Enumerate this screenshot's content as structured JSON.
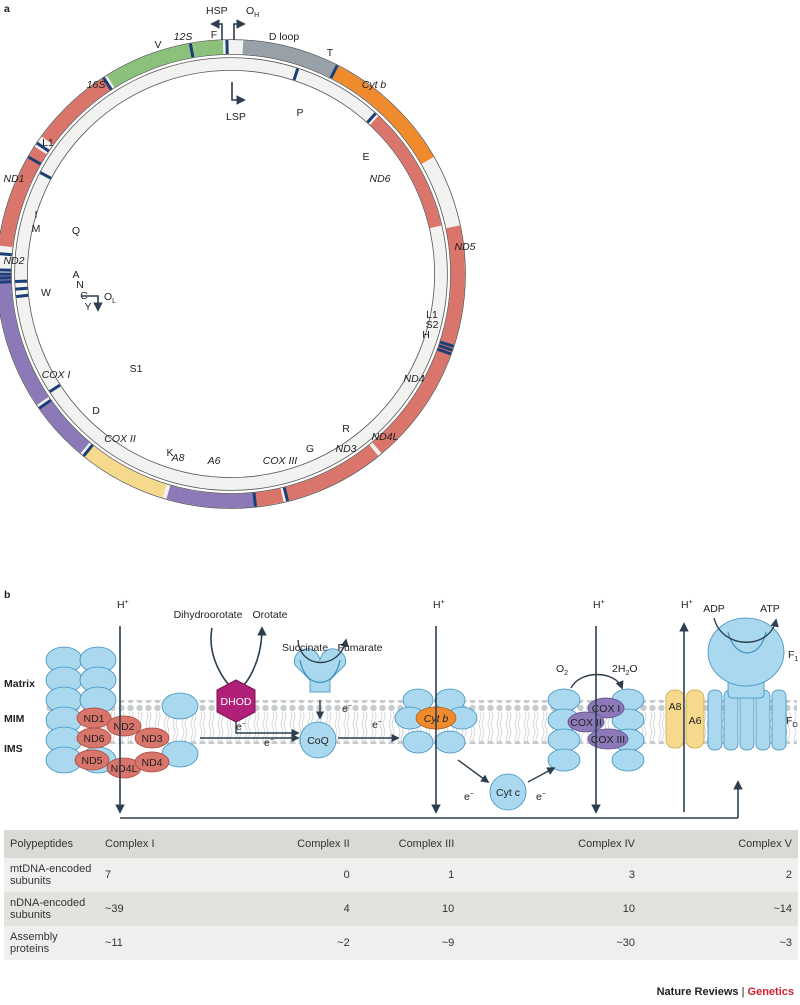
{
  "panel_a": {
    "letter": "a",
    "markers": {
      "HSP": "HSP",
      "OH_main": "O",
      "OH_sub": "H",
      "LSP": "LSP",
      "OL_main": "O",
      "OL_sub": "L"
    },
    "gene_labels": [
      "12S",
      "16S",
      "ND1",
      "ND2",
      "COX I",
      "COX II",
      "A8",
      "A6",
      "COX III",
      "ND3",
      "ND4L",
      "ND4",
      "ND5",
      "ND6",
      "Cyt b",
      "D loop"
    ],
    "trna_labels": [
      "F",
      "V",
      "L1",
      "I",
      "M",
      "Q",
      "W",
      "A",
      "N",
      "C",
      "Y",
      "S1",
      "D",
      "K",
      "G",
      "R",
      "H",
      "S2",
      "L1",
      "E",
      "P",
      "T"
    ],
    "colors": {
      "rrna": "#8cc17c",
      "complex1": "#d9756a",
      "complex4": "#8c79b8",
      "complex5": "#f7d98d",
      "complex3": "#ef8b2c",
      "dloop": "#98a1a8",
      "trna": "#1c3e78",
      "noncoding": "#f2f2f0"
    }
  },
  "panel_b": {
    "letter": "b",
    "membrane": {
      "matrix": "Matrix",
      "mim": "MIM",
      "ims": "IMS"
    },
    "protons": {
      "main": "H",
      "sup": "+"
    },
    "electron": {
      "main": "e",
      "sup": "−"
    },
    "complex1_subunits": [
      "ND1",
      "ND2",
      "ND6",
      "ND3",
      "ND5",
      "ND4L",
      "ND4"
    ],
    "dhod": {
      "label": "DHOD",
      "substrate": "Dihydroorotate",
      "product": "Orotate"
    },
    "complex2": {
      "substrate": "Succinate",
      "product": "Fumarate"
    },
    "coq": "CoQ",
    "complex3": {
      "subunit": "Cyt b"
    },
    "cytc": "Cyt c",
    "complex4": {
      "o2_main": "O",
      "o2_sub": "2",
      "water_pre": "2H",
      "water_sub": "2",
      "water_post": "O",
      "subunits": [
        "COX I",
        "COX II",
        "COX III"
      ]
    },
    "complex5": {
      "adp": "ADP",
      "atp": "ATP",
      "f1_main": "F",
      "f1_sub": "1",
      "fo_main": "F",
      "fo_sub": "O",
      "subunits": [
        "A8",
        "A6"
      ]
    },
    "colors": {
      "blue": "#a9d8ef",
      "blue_stroke": "#3b8fbf",
      "red": "#d9756a",
      "magenta": "#b02079",
      "purple": "#8c79b8",
      "orange": "#ef8b2c",
      "yellow": "#f7d98d",
      "arrow": "#2c3e4f",
      "membrane": "#c9ccce"
    }
  },
  "table": {
    "headers": [
      "Polypeptides",
      "Complex I",
      "Complex II",
      "Complex III",
      "Complex IV",
      "Complex V"
    ],
    "rows": [
      {
        "label": "mtDNA-encoded subunits",
        "values": [
          "7",
          "0",
          "1",
          "3",
          "2"
        ]
      },
      {
        "label": "nDNA-encoded subunits",
        "values": [
          "~39",
          "4",
          "10",
          "10",
          "~14"
        ]
      },
      {
        "label": "Assembly proteins",
        "values": [
          "~11",
          "~2",
          "~9",
          "~30",
          "~3"
        ]
      }
    ]
  },
  "credit": {
    "journal": "Nature Reviews",
    "separator": "|",
    "section": "Genetics"
  }
}
